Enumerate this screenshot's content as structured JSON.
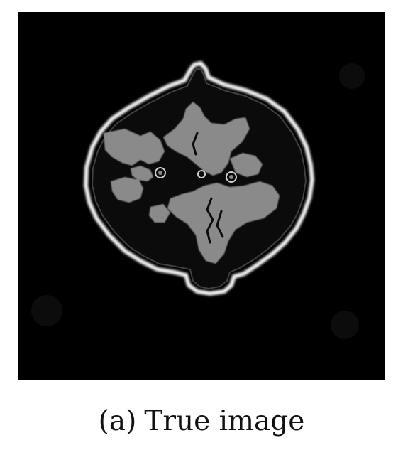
{
  "figure": {
    "subfigure_label": "(a)",
    "caption_text": "True image"
  },
  "image": {
    "background_color": "#000000",
    "tissue_color": "#0b0b0b",
    "matter_color": "#8a8a8a",
    "rim_color": "#f2f2f2"
  }
}
